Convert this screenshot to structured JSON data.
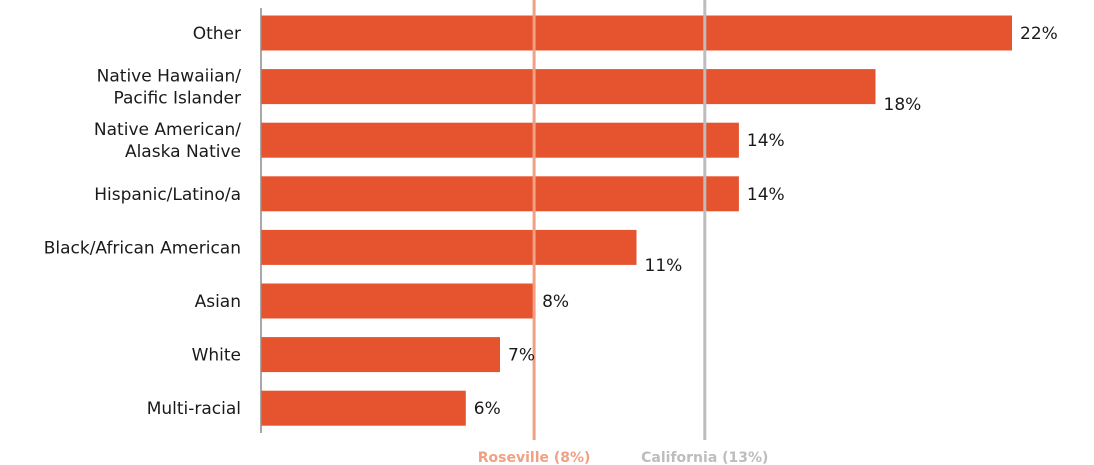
{
  "chart_data": {
    "type": "bar",
    "orientation": "horizontal",
    "categories": [
      [
        "Other"
      ],
      [
        "Native Hawaiian/",
        "Pacific Islander"
      ],
      [
        "Native American/",
        "Alaska Native"
      ],
      [
        "Hispanic/Latino/a"
      ],
      [
        "Black/African American"
      ],
      [
        "Asian"
      ],
      [
        "White"
      ],
      [
        "Multi-racial"
      ]
    ],
    "values": [
      22,
      18,
      14,
      14,
      11,
      8,
      7,
      6
    ],
    "value_labels": [
      "22%",
      "18%",
      "14%",
      "14%",
      "11%",
      "8%",
      "7%",
      "6%"
    ],
    "xlim": [
      0,
      22
    ],
    "grid": false,
    "reference_lines": [
      {
        "label": "Roseville (8%)",
        "value": 8,
        "color": "#f0a184"
      },
      {
        "label": "California (13%)",
        "value": 13,
        "color": "#bdbdbd"
      }
    ],
    "colors": {
      "bar": "#e5532f",
      "axis": "#8c8c8c",
      "text": "#1a1a1a"
    }
  }
}
